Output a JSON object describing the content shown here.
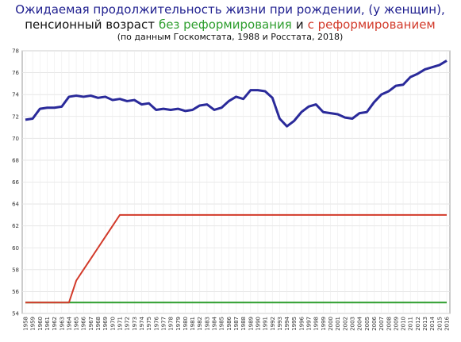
{
  "chart_data": {
    "type": "line",
    "title": [
      "Ожидаемая продолжительность жизни при рождении, (у женщин),",
      "пенсионный возраст",
      "и"
    ],
    "subtitle": "(по данным Госкомстата, 1988 и Росстата, 2018)",
    "categories": [
      "1958",
      "1959",
      "1960",
      "1961",
      "1962",
      "1963",
      "1964",
      "1965",
      "1966",
      "1967",
      "1968",
      "1969",
      "1970",
      "1971",
      "1972",
      "1973",
      "1974",
      "1975",
      "1976",
      "1977",
      "1978",
      "1979",
      "1980",
      "1981",
      "1982",
      "1983",
      "1984",
      "1985",
      "1986",
      "1987",
      "1988",
      "1989",
      "1990",
      "1991",
      "1992",
      "1993",
      "1994",
      "1995",
      "1996",
      "1997",
      "1998",
      "1999",
      "2000",
      "2001",
      "2002",
      "2003",
      "2004",
      "2005",
      "2006",
      "2007",
      "2008",
      "2009",
      "2010",
      "2011",
      "2012",
      "2013",
      "2014",
      "2015",
      "2016"
    ],
    "series": [
      {
        "color": "#2a2a9a",
        "values": [
          71.7,
          71.8,
          72.7,
          72.8,
          72.8,
          72.9,
          73.8,
          73.9,
          73.8,
          73.9,
          73.7,
          73.8,
          73.5,
          73.6,
          73.4,
          73.5,
          73.1,
          73.2,
          72.6,
          72.7,
          72.6,
          72.7,
          72.5,
          72.6,
          73.0,
          73.1,
          72.6,
          72.8,
          73.4,
          73.8,
          73.6,
          74.4,
          74.4,
          74.3,
          73.7,
          71.8,
          71.1,
          71.6,
          72.4,
          72.9,
          73.1,
          72.4,
          72.3,
          72.2,
          71.9,
          71.8,
          72.3,
          72.4,
          73.3,
          74.0,
          74.3,
          74.8,
          74.9,
          75.6,
          75.9,
          76.3,
          76.5,
          76.7,
          77.1
        ]
      },
      {
        "name": "без реформирования",
        "color": "#2e9e2e",
        "values": [
          55,
          55,
          55,
          55,
          55,
          55,
          55,
          55,
          55,
          55,
          55,
          55,
          55,
          55,
          55,
          55,
          55,
          55,
          55,
          55,
          55,
          55,
          55,
          55,
          55,
          55,
          55,
          55,
          55,
          55,
          55,
          55,
          55,
          55,
          55,
          55,
          55,
          55,
          55,
          55,
          55,
          55,
          55,
          55,
          55,
          55,
          55,
          55,
          55,
          55,
          55,
          55,
          55,
          55,
          55,
          55,
          55,
          55,
          55
        ]
      },
      {
        "name": "с реформированием",
        "color": "#d23a2a",
        "values": [
          55,
          55,
          55,
          55,
          55,
          55,
          55,
          57,
          58,
          59,
          60,
          61,
          62,
          63,
          63,
          63,
          63,
          63,
          63,
          63,
          63,
          63,
          63,
          63,
          63,
          63,
          63,
          63,
          63,
          63,
          63,
          63,
          63,
          63,
          63,
          63,
          63,
          63,
          63,
          63,
          63,
          63,
          63,
          63,
          63,
          63,
          63,
          63,
          63,
          63,
          63,
          63,
          63,
          63,
          63,
          63,
          63,
          63,
          63
        ]
      }
    ],
    "ylim": [
      54,
      78
    ],
    "yticks": [
      54,
      56,
      58,
      60,
      62,
      64,
      66,
      68,
      70,
      72,
      74,
      76,
      78
    ],
    "grid": true
  }
}
